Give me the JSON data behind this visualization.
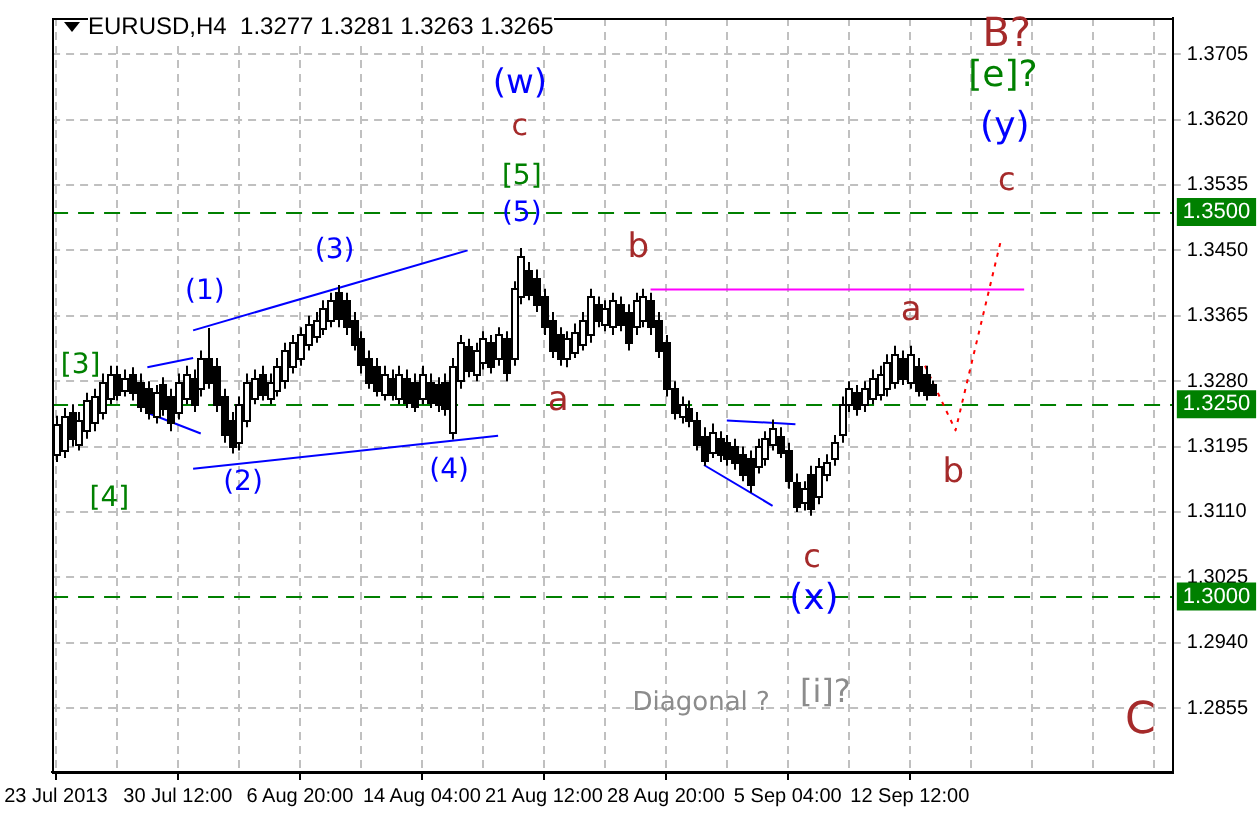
{
  "chart_data": {
    "type": "candlestick",
    "title": "EURUSD,H4  1.3277 1.3281 1.3263 1.3265",
    "categories": [
      "23 Jul 2013",
      null,
      null,
      null,
      null,
      null,
      null,
      null,
      null,
      null,
      null,
      null,
      null,
      null,
      null,
      null,
      "30 Jul 12:00",
      null,
      null,
      null,
      null,
      null,
      null,
      null,
      null,
      null,
      null,
      null,
      null,
      null,
      null,
      null,
      "6 Aug 20:00",
      null,
      null,
      null,
      null,
      null,
      null,
      null,
      null,
      null,
      null,
      null,
      null,
      null,
      null,
      null,
      "14 Aug 04:00",
      null,
      null,
      null,
      null,
      null,
      null,
      null,
      null,
      null,
      null,
      null,
      null,
      null,
      null,
      null,
      "21 Aug 12:00",
      null,
      null,
      null,
      null,
      null,
      null,
      null,
      null,
      null,
      null,
      null,
      null,
      null,
      null,
      null,
      "28 Aug 20:00",
      null,
      null,
      null,
      null,
      null,
      null,
      null,
      null,
      null,
      null,
      null,
      null,
      null,
      null,
      null,
      "5 Sep 04:00",
      null,
      null,
      null,
      null,
      null,
      null,
      null,
      null,
      null,
      null,
      null,
      null,
      null,
      null,
      null,
      "12 Sep 12:00",
      null,
      null,
      null,
      null,
      null,
      null,
      null,
      null,
      null,
      null,
      null,
      null,
      null,
      null,
      null,
      null,
      null,
      null,
      null,
      null,
      null,
      null,
      null,
      null,
      null,
      null,
      null,
      null,
      null,
      null,
      null,
      null,
      null,
      null
    ],
    "ohlc": [
      [
        1.3185,
        1.3235,
        1.3175,
        1.3225
      ],
      [
        1.319,
        1.3245,
        1.318,
        1.3235
      ],
      [
        1.324,
        1.325,
        1.3195,
        1.3205
      ],
      [
        1.32,
        1.324,
        1.319,
        1.323
      ],
      [
        1.3215,
        1.3265,
        1.3205,
        1.3255
      ],
      [
        1.3225,
        1.327,
        1.3215,
        1.326
      ],
      [
        1.324,
        1.329,
        1.323,
        1.328
      ],
      [
        1.326,
        1.33,
        1.325,
        1.329
      ],
      [
        1.329,
        1.33,
        1.3255,
        1.3265
      ],
      [
        1.327,
        1.3295,
        1.326,
        1.3285
      ],
      [
        1.3288,
        1.3298,
        1.3255,
        1.3265
      ],
      [
        1.328,
        1.329,
        1.324,
        1.325
      ],
      [
        1.327,
        1.328,
        1.323,
        1.324
      ],
      [
        1.3235,
        1.3275,
        1.3225,
        1.3265
      ],
      [
        1.3275,
        1.3285,
        1.3235,
        1.3245
      ],
      [
        1.326,
        1.327,
        1.3215,
        1.3225
      ],
      [
        1.324,
        1.329,
        1.323,
        1.328
      ],
      [
        1.326,
        1.33,
        1.325,
        1.329
      ],
      [
        1.3285,
        1.3295,
        1.324,
        1.325
      ],
      [
        1.327,
        1.332,
        1.326,
        1.331
      ],
      [
        1.331,
        1.3349,
        1.327,
        1.328
      ],
      [
        1.33,
        1.331,
        1.324,
        1.325
      ],
      [
        1.326,
        1.327,
        1.32,
        1.321
      ],
      [
        1.323,
        1.324,
        1.3186,
        1.3196
      ],
      [
        1.32,
        1.326,
        1.319,
        1.325
      ],
      [
        1.323,
        1.329,
        1.322,
        1.328
      ],
      [
        1.326,
        1.3295,
        1.325,
        1.3285
      ],
      [
        1.329,
        1.33,
        1.3255,
        1.3265
      ],
      [
        1.326,
        1.329,
        1.325,
        1.328
      ],
      [
        1.327,
        1.331,
        1.326,
        1.33
      ],
      [
        1.328,
        1.333,
        1.327,
        1.332
      ],
      [
        1.33,
        1.334,
        1.329,
        1.333
      ],
      [
        1.331,
        1.335,
        1.33,
        1.334
      ],
      [
        1.333,
        1.3365,
        1.332,
        1.3355
      ],
      [
        1.334,
        1.337,
        1.333,
        1.336
      ],
      [
        1.335,
        1.3385,
        1.334,
        1.3375
      ],
      [
        1.336,
        1.3395,
        1.335,
        1.3385
      ],
      [
        1.3395,
        1.3405,
        1.335,
        1.336
      ],
      [
        1.3385,
        1.3395,
        1.334,
        1.335
      ],
      [
        1.336,
        1.337,
        1.332,
        1.333
      ],
      [
        1.3335,
        1.3345,
        1.329,
        1.33
      ],
      [
        1.331,
        1.332,
        1.327,
        1.328
      ],
      [
        1.33,
        1.331,
        1.326,
        1.327
      ],
      [
        1.3265,
        1.33,
        1.3255,
        1.329
      ],
      [
        1.3285,
        1.3295,
        1.3255,
        1.3265
      ],
      [
        1.326,
        1.33,
        1.325,
        1.329
      ],
      [
        1.3285,
        1.3295,
        1.3245,
        1.3255
      ],
      [
        1.328,
        1.329,
        1.324,
        1.325
      ],
      [
        1.326,
        1.33,
        1.325,
        1.329
      ],
      [
        1.328,
        1.329,
        1.3245,
        1.3255
      ],
      [
        1.3275,
        1.3285,
        1.324,
        1.325
      ],
      [
        1.328,
        1.329,
        1.3235,
        1.3245
      ],
      [
        1.3214,
        1.331,
        1.3204,
        1.33
      ],
      [
        1.328,
        1.334,
        1.327,
        1.333
      ],
      [
        1.3325,
        1.3335,
        1.3285,
        1.3295
      ],
      [
        1.329,
        1.333,
        1.328,
        1.332
      ],
      [
        1.3305,
        1.3345,
        1.3295,
        1.3335
      ],
      [
        1.333,
        1.334,
        1.329,
        1.33
      ],
      [
        1.331,
        1.335,
        1.33,
        1.334
      ],
      [
        1.3335,
        1.3345,
        1.328,
        1.329
      ],
      [
        1.331,
        1.341,
        1.33,
        1.34
      ],
      [
        1.339,
        1.3453,
        1.338,
        1.3443
      ],
      [
        1.3425,
        1.3435,
        1.3385,
        1.3395
      ],
      [
        1.3415,
        1.3425,
        1.337,
        1.338
      ],
      [
        1.339,
        1.34,
        1.334,
        1.335
      ],
      [
        1.336,
        1.337,
        1.331,
        1.332
      ],
      [
        1.334,
        1.335,
        1.33,
        1.331
      ],
      [
        1.3308,
        1.3345,
        1.3298,
        1.3335
      ],
      [
        1.332,
        1.3355,
        1.331,
        1.3345
      ],
      [
        1.333,
        1.337,
        1.332,
        1.336
      ],
      [
        1.334,
        1.34,
        1.333,
        1.339
      ],
      [
        1.338,
        1.339,
        1.335,
        1.336
      ],
      [
        1.3355,
        1.3385,
        1.3345,
        1.3375
      ],
      [
        1.335,
        1.3395,
        1.334,
        1.3385
      ],
      [
        1.338,
        1.339,
        1.3345,
        1.3355
      ],
      [
        1.337,
        1.338,
        1.332,
        1.333
      ],
      [
        1.335,
        1.3395,
        1.334,
        1.3385
      ],
      [
        1.336,
        1.34,
        1.335,
        1.339
      ],
      [
        1.3385,
        1.3395,
        1.334,
        1.335
      ],
      [
        1.336,
        1.337,
        1.331,
        1.332
      ],
      [
        1.333,
        1.334,
        1.326,
        1.327
      ],
      [
        1.327,
        1.328,
        1.323,
        1.324
      ],
      [
        1.3235,
        1.326,
        1.3225,
        1.325
      ],
      [
        1.3245,
        1.3255,
        1.322,
        1.323
      ],
      [
        1.323,
        1.324,
        1.319,
        1.32
      ],
      [
        1.321,
        1.322,
        1.317,
        1.318
      ],
      [
        1.319,
        1.3225,
        1.318,
        1.3215
      ],
      [
        1.3205,
        1.3215,
        1.3175,
        1.3185
      ],
      [
        1.32,
        1.321,
        1.317,
        1.318
      ],
      [
        1.3195,
        1.3205,
        1.3165,
        1.3175
      ],
      [
        1.3185,
        1.3195,
        1.315,
        1.316
      ],
      [
        1.318,
        1.319,
        1.3135,
        1.3145
      ],
      [
        1.317,
        1.3205,
        1.316,
        1.3195
      ],
      [
        1.318,
        1.3215,
        1.317,
        1.3205
      ],
      [
        1.32,
        1.323,
        1.319,
        1.322
      ],
      [
        1.321,
        1.322,
        1.318,
        1.319
      ],
      [
        1.319,
        1.32,
        1.314,
        1.315
      ],
      [
        1.315,
        1.316,
        1.311,
        1.312
      ],
      [
        1.3122,
        1.315,
        1.3112,
        1.314
      ],
      [
        1.316,
        1.317,
        1.3105,
        1.3115
      ],
      [
        1.313,
        1.318,
        1.312,
        1.317
      ],
      [
        1.316,
        1.3185,
        1.315,
        1.3175
      ],
      [
        1.318,
        1.321,
        1.317,
        1.32
      ],
      [
        1.321,
        1.326,
        1.32,
        1.325
      ],
      [
        1.325,
        1.328,
        1.324,
        1.327
      ],
      [
        1.3265,
        1.3275,
        1.3235,
        1.3245
      ],
      [
        1.325,
        1.328,
        1.324,
        1.327
      ],
      [
        1.326,
        1.3295,
        1.325,
        1.3285
      ],
      [
        1.3265,
        1.33,
        1.3255,
        1.329
      ],
      [
        1.327,
        1.3315,
        1.326,
        1.3305
      ],
      [
        1.328,
        1.3326,
        1.327,
        1.3316
      ],
      [
        1.331,
        1.332,
        1.3275,
        1.3285
      ],
      [
        1.328,
        1.3326,
        1.327,
        1.3316
      ],
      [
        1.33,
        1.331,
        1.326,
        1.327
      ],
      [
        1.329,
        1.33,
        1.3255,
        1.3265
      ],
      [
        1.3277,
        1.3281,
        1.3263,
        1.3265
      ],
      null,
      null,
      null,
      null,
      null,
      null,
      null,
      null,
      null,
      null,
      null,
      null,
      null,
      null,
      null,
      null,
      null,
      null,
      null,
      null,
      null,
      null,
      null,
      null,
      null,
      null,
      null,
      null,
      null,
      null,
      null
    ],
    "series": [
      {
        "type": "line",
        "color": "#0000ff",
        "values": [
          null,
          null,
          null,
          null,
          null,
          null,
          null,
          null,
          null,
          null,
          null,
          null,
          1.3298,
          null,
          null,
          null,
          null,
          null,
          1.331,
          null,
          null,
          null,
          null,
          null,
          null,
          null,
          null,
          null,
          null,
          null,
          null,
          null,
          null,
          null,
          null,
          null,
          null,
          null,
          null,
          null,
          null,
          null,
          null,
          null,
          null,
          null,
          null,
          null,
          null,
          null,
          null,
          null,
          null,
          null,
          null,
          null,
          null,
          null,
          null,
          null,
          null,
          null,
          null,
          null,
          null,
          null,
          null,
          null,
          null,
          null,
          null,
          null,
          null,
          null,
          null,
          null,
          null,
          null,
          null,
          null,
          null,
          null,
          null,
          null,
          null,
          null,
          null,
          null,
          null,
          null,
          null,
          null,
          null,
          null,
          null,
          null,
          null,
          null,
          null,
          null,
          null,
          null,
          null,
          null,
          null,
          null,
          null,
          null,
          null,
          null,
          null,
          null,
          null,
          null,
          null,
          null,
          null,
          null,
          null,
          null,
          null,
          null,
          null,
          null,
          null,
          null,
          null,
          null,
          null,
          null,
          null,
          null,
          null,
          null,
          null,
          null,
          null,
          null,
          null,
          null,
          null,
          null,
          null,
          null,
          null,
          null,
          null
        ]
      },
      {
        "type": "line",
        "color": "#0000ff",
        "values": [
          null,
          null,
          null,
          null,
          null,
          null,
          null,
          null,
          null,
          null,
          null,
          null,
          null,
          null,
          null,
          null,
          null,
          null,
          1.3346,
          null,
          null,
          null,
          null,
          null,
          null,
          null,
          null,
          null,
          null,
          null,
          null,
          null,
          null,
          null,
          null,
          null,
          null,
          null,
          null,
          null,
          null,
          null,
          null,
          null,
          null,
          null,
          null,
          null,
          null,
          null,
          null,
          null,
          null,
          null,
          1.345,
          null,
          null,
          null,
          null,
          null,
          null,
          null,
          null,
          null,
          null,
          null,
          null,
          null,
          null,
          null,
          null,
          null,
          null,
          null,
          null,
          null,
          null,
          null,
          null,
          null,
          null,
          null,
          null,
          null,
          null,
          null,
          null,
          null,
          null,
          null,
          null,
          null,
          null,
          null,
          null,
          null,
          null,
          null,
          null,
          null,
          null,
          null,
          null,
          null,
          null,
          null,
          null,
          null,
          null,
          null,
          null,
          null,
          null,
          null,
          null,
          null,
          null,
          null,
          null,
          null,
          null,
          null,
          null,
          null,
          null,
          null,
          null,
          null,
          null,
          null,
          null,
          null,
          null,
          null,
          null,
          null,
          null,
          null,
          null,
          null,
          null,
          null,
          null,
          null,
          null,
          null,
          null
        ]
      },
      {
        "type": "line",
        "color": "#0000ff",
        "values": [
          null,
          null,
          null,
          null,
          null,
          null,
          null,
          null,
          null,
          null,
          null,
          null,
          1.3239,
          null,
          null,
          null,
          null,
          null,
          null,
          1.3212,
          null,
          null,
          null,
          null,
          null,
          null,
          null,
          null,
          null,
          null,
          null,
          null,
          null,
          null,
          null,
          null,
          null,
          null,
          null,
          null,
          null,
          null,
          null,
          null,
          null,
          null,
          null,
          null,
          null,
          null,
          null,
          null,
          null,
          null,
          null,
          null,
          null,
          null,
          null,
          null,
          null,
          null,
          null,
          null,
          null,
          null,
          null,
          null,
          null,
          null,
          null,
          null,
          null,
          null,
          null,
          null,
          null,
          null,
          null,
          null,
          null,
          null,
          null,
          null,
          null,
          null,
          null,
          null,
          null,
          null,
          null,
          null,
          null,
          null,
          null,
          null,
          null,
          null,
          null,
          null,
          null,
          null,
          null,
          null,
          null,
          null,
          null,
          null,
          null,
          null,
          null,
          null,
          null,
          null,
          null,
          null,
          null,
          null,
          null,
          null,
          null,
          null,
          null,
          null,
          null,
          null,
          null,
          null,
          null,
          null,
          null,
          null,
          null,
          null,
          null,
          null,
          null,
          null,
          null,
          null,
          null,
          null,
          null,
          null,
          null,
          null,
          null
        ]
      },
      {
        "type": "line",
        "color": "#0000ff",
        "values": [
          null,
          null,
          null,
          null,
          null,
          null,
          null,
          null,
          null,
          null,
          null,
          null,
          null,
          null,
          null,
          null,
          null,
          null,
          1.3166,
          null,
          null,
          null,
          null,
          null,
          null,
          null,
          null,
          null,
          null,
          null,
          null,
          null,
          null,
          null,
          null,
          null,
          null,
          null,
          null,
          null,
          null,
          null,
          null,
          null,
          null,
          null,
          null,
          null,
          null,
          null,
          null,
          null,
          null,
          null,
          null,
          null,
          null,
          null,
          1.3209,
          null,
          null,
          null,
          null,
          null,
          null,
          null,
          null,
          null,
          null,
          null,
          null,
          null,
          null,
          null,
          null,
          null,
          null,
          null,
          null,
          null,
          null,
          null,
          null,
          null,
          null,
          null,
          null,
          null,
          null,
          null,
          null,
          null,
          null,
          null,
          null,
          null,
          null,
          null,
          null,
          null,
          null,
          null,
          null,
          null,
          null,
          null,
          null,
          null,
          null,
          null,
          null,
          null,
          null,
          null,
          null,
          null,
          null,
          null,
          null,
          null,
          null,
          null,
          null,
          null,
          null,
          null,
          null,
          null,
          null,
          null,
          null,
          null,
          null,
          null,
          null,
          null,
          null,
          null,
          null,
          null,
          null,
          null,
          null,
          null,
          null,
          null,
          null
        ]
      },
      {
        "type": "line",
        "color": "#ff00ff",
        "values": [
          null,
          null,
          null,
          null,
          null,
          null,
          null,
          null,
          null,
          null,
          null,
          null,
          null,
          null,
          null,
          null,
          null,
          null,
          null,
          null,
          null,
          null,
          null,
          null,
          null,
          null,
          null,
          null,
          null,
          null,
          null,
          null,
          null,
          null,
          null,
          null,
          null,
          null,
          null,
          null,
          null,
          null,
          null,
          null,
          null,
          null,
          null,
          null,
          null,
          null,
          null,
          null,
          null,
          null,
          null,
          null,
          null,
          null,
          null,
          null,
          null,
          null,
          null,
          null,
          null,
          null,
          null,
          null,
          null,
          null,
          null,
          null,
          null,
          null,
          null,
          null,
          null,
          null,
          1.3399,
          null,
          null,
          null,
          null,
          null,
          null,
          null,
          null,
          null,
          null,
          null,
          null,
          null,
          null,
          null,
          null,
          null,
          null,
          null,
          null,
          null,
          null,
          null,
          null,
          null,
          null,
          null,
          null,
          null,
          null,
          null,
          null,
          null,
          null,
          null,
          null,
          null,
          null,
          null,
          null,
          null,
          null,
          null,
          null,
          null,
          null,
          null,
          null,
          1.3399,
          null,
          null,
          null,
          null,
          null,
          null,
          null,
          null,
          null,
          null,
          null,
          null,
          null,
          null,
          null,
          null,
          null,
          null,
          null
        ]
      },
      {
        "type": "line",
        "color": "#0000ff",
        "values": [
          null,
          null,
          null,
          null,
          null,
          null,
          null,
          null,
          null,
          null,
          null,
          null,
          null,
          null,
          null,
          null,
          null,
          null,
          null,
          null,
          null,
          null,
          null,
          null,
          null,
          null,
          null,
          null,
          null,
          null,
          null,
          null,
          null,
          null,
          null,
          null,
          null,
          null,
          null,
          null,
          null,
          null,
          null,
          null,
          null,
          null,
          null,
          null,
          null,
          null,
          null,
          null,
          null,
          null,
          null,
          null,
          null,
          null,
          null,
          null,
          null,
          null,
          null,
          null,
          null,
          null,
          null,
          null,
          null,
          null,
          null,
          null,
          null,
          null,
          null,
          null,
          null,
          null,
          null,
          null,
          null,
          null,
          null,
          null,
          null,
          null,
          null,
          null,
          1.3229,
          null,
          null,
          null,
          null,
          null,
          null,
          null,
          null,
          1.3224,
          null,
          null,
          null,
          null,
          null,
          null,
          null,
          null,
          null,
          null,
          null,
          null,
          null,
          null,
          null,
          null,
          null,
          null,
          null,
          null,
          null,
          null,
          null,
          null,
          null,
          null,
          null,
          null,
          null,
          null,
          null,
          null,
          null,
          null,
          null,
          null,
          null,
          null,
          null,
          null,
          null,
          null,
          null,
          null,
          null,
          null,
          null,
          null,
          null
        ]
      },
      {
        "type": "line",
        "color": "#0000ff",
        "values": [
          null,
          null,
          null,
          null,
          null,
          null,
          null,
          null,
          null,
          null,
          null,
          null,
          null,
          null,
          null,
          null,
          null,
          null,
          null,
          null,
          null,
          null,
          null,
          null,
          null,
          null,
          null,
          null,
          null,
          null,
          null,
          null,
          null,
          null,
          null,
          null,
          null,
          null,
          null,
          null,
          null,
          null,
          null,
          null,
          null,
          null,
          null,
          null,
          null,
          null,
          null,
          null,
          null,
          null,
          null,
          null,
          null,
          null,
          null,
          null,
          null,
          null,
          null,
          null,
          null,
          null,
          null,
          null,
          null,
          null,
          null,
          null,
          null,
          null,
          null,
          null,
          null,
          null,
          null,
          null,
          null,
          null,
          null,
          null,
          null,
          1.3171,
          null,
          null,
          null,
          null,
          null,
          null,
          null,
          null,
          1.3118,
          null,
          null,
          null,
          null,
          null,
          null,
          null,
          null,
          null,
          null,
          null,
          null,
          null,
          null,
          null,
          null,
          null,
          null,
          null,
          null,
          null,
          null,
          null,
          null,
          null,
          null,
          null,
          null,
          null,
          null,
          null,
          null,
          null,
          null,
          null,
          null,
          null,
          null,
          null,
          null,
          null,
          null,
          null,
          null,
          null,
          null,
          null,
          null,
          null,
          null,
          null,
          null
        ]
      },
      {
        "type": "line",
        "color": "#ff0000",
        "line_style": "dotted",
        "values": [
          null,
          null,
          null,
          null,
          null,
          null,
          null,
          null,
          null,
          null,
          null,
          null,
          null,
          null,
          null,
          null,
          null,
          null,
          null,
          null,
          null,
          null,
          null,
          null,
          null,
          null,
          null,
          null,
          null,
          null,
          null,
          null,
          null,
          null,
          null,
          null,
          null,
          null,
          null,
          null,
          null,
          null,
          null,
          null,
          null,
          null,
          null,
          null,
          null,
          null,
          null,
          null,
          null,
          null,
          null,
          null,
          null,
          null,
          null,
          null,
          null,
          null,
          null,
          null,
          null,
          null,
          null,
          null,
          null,
          null,
          null,
          null,
          null,
          null,
          null,
          null,
          null,
          null,
          null,
          null,
          null,
          null,
          null,
          null,
          null,
          null,
          null,
          null,
          null,
          null,
          null,
          null,
          null,
          null,
          null,
          null,
          null,
          null,
          null,
          null,
          null,
          null,
          null,
          null,
          null,
          null,
          null,
          null,
          null,
          null,
          null,
          null,
          null,
          null,
          1.33,
          null,
          null,
          null,
          1.3216,
          null,
          null,
          null,
          null,
          null,
          1.3465,
          null,
          null,
          null,
          null,
          null,
          null,
          null,
          null,
          null,
          null,
          null,
          null,
          null,
          null,
          null,
          null,
          null,
          null,
          null,
          null,
          null,
          null
        ]
      }
    ],
    "ylim": [
      1.2772,
      1.3752
    ],
    "yticks": [
      {
        "value": 1.2855,
        "label": "1.2855"
      },
      {
        "value": 1.294,
        "label": "1.2940"
      },
      {
        "value": 1.3025,
        "label": "1.3025"
      },
      {
        "value": 1.311,
        "label": "1.3110"
      },
      {
        "value": 1.3195,
        "label": "1.3195"
      },
      {
        "value": 1.328,
        "label": "1.3280"
      },
      {
        "value": 1.3365,
        "label": "1.3365"
      },
      {
        "value": 1.345,
        "label": "1.3450"
      },
      {
        "value": 1.3535,
        "label": "1.3535"
      },
      {
        "value": 1.362,
        "label": "1.3620"
      },
      {
        "value": 1.3705,
        "label": "1.3705"
      }
    ],
    "ref_lines": [
      {
        "axis": "y",
        "value": 1.35,
        "label": "1.3500",
        "color": "#008000",
        "line_style": "dashed"
      },
      {
        "axis": "y",
        "value": 1.325,
        "label": "1.3250",
        "color": "#008000",
        "line_style": "dashed"
      },
      {
        "axis": "y",
        "value": 1.3,
        "label": "1.3000",
        "color": "#008000",
        "line_style": "dashed"
      }
    ],
    "annotations": [
      "(w)",
      "c",
      "[5]",
      "(5)",
      "(1)",
      "(3)",
      "[3]",
      "[4]",
      "(2)",
      "(4)",
      "a",
      "b",
      "a",
      "b",
      "c",
      "(x)",
      "c",
      "(y)",
      "[e]?",
      "B?",
      "C",
      "Diagonal ?",
      "[i]?"
    ],
    "grid": true,
    "legend": false
  }
}
